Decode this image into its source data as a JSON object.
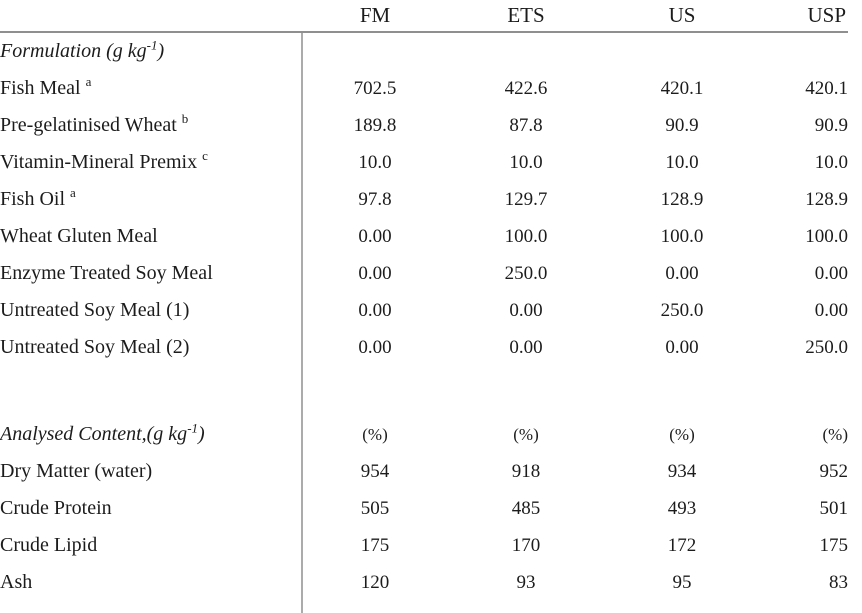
{
  "colors": {
    "background": "#ffffff",
    "text": "#1c1c1c",
    "header_rule": "#8f8f8f",
    "column_rule": "#ababab"
  },
  "table": {
    "headers": [
      "FM",
      "ETS",
      "US",
      "USP"
    ],
    "section1_title": {
      "pre": "Formulation (g kg",
      "sup": "-1",
      "post": ")"
    },
    "formulation_rows": [
      {
        "label": "Fish Meal",
        "note": "a",
        "values": [
          "702.5",
          "422.6",
          "420.1",
          "420.1"
        ]
      },
      {
        "label": "Pre-gelatinised Wheat",
        "note": "b",
        "values": [
          "189.8",
          "87.8",
          "90.9",
          "90.9"
        ]
      },
      {
        "label": "Vitamin-Mineral Premix",
        "note": "c",
        "values": [
          "10.0",
          "10.0",
          "10.0",
          "10.0"
        ]
      },
      {
        "label": "Fish Oil",
        "note": "a",
        "values": [
          "97.8",
          "129.7",
          "128.9",
          "128.9"
        ]
      },
      {
        "label": "Wheat Gluten Meal",
        "values": [
          "0.00",
          "100.0",
          "100.0",
          "100.0"
        ]
      },
      {
        "label": "Enzyme Treated Soy Meal",
        "values": [
          "0.00",
          "250.0",
          "0.00",
          "0.00"
        ]
      },
      {
        "label": "Untreated Soy Meal (1)",
        "values": [
          "0.00",
          "0.00",
          "250.0",
          "0.00"
        ]
      },
      {
        "label": "Untreated Soy Meal (2)",
        "values": [
          "0.00",
          "0.00",
          "0.00",
          "250.0"
        ]
      }
    ],
    "section2_title": {
      "pre": "Analysed Content,(g kg",
      "sup": "-1",
      "post": ")"
    },
    "section2_units": [
      "(%)",
      "(%)",
      "(%)",
      "(%)"
    ],
    "analysed_rows": [
      {
        "label": "Dry Matter (water)",
        "values": [
          "954",
          "918",
          "934",
          "952"
        ]
      },
      {
        "label": "Crude Protein",
        "values": [
          "505",
          "485",
          "493",
          "501"
        ]
      },
      {
        "label": "Crude Lipid",
        "values": [
          "175",
          "170",
          "172",
          "175"
        ]
      },
      {
        "label": "Ash",
        "values": [
          "120",
          "93",
          "95",
          "83"
        ]
      }
    ]
  }
}
